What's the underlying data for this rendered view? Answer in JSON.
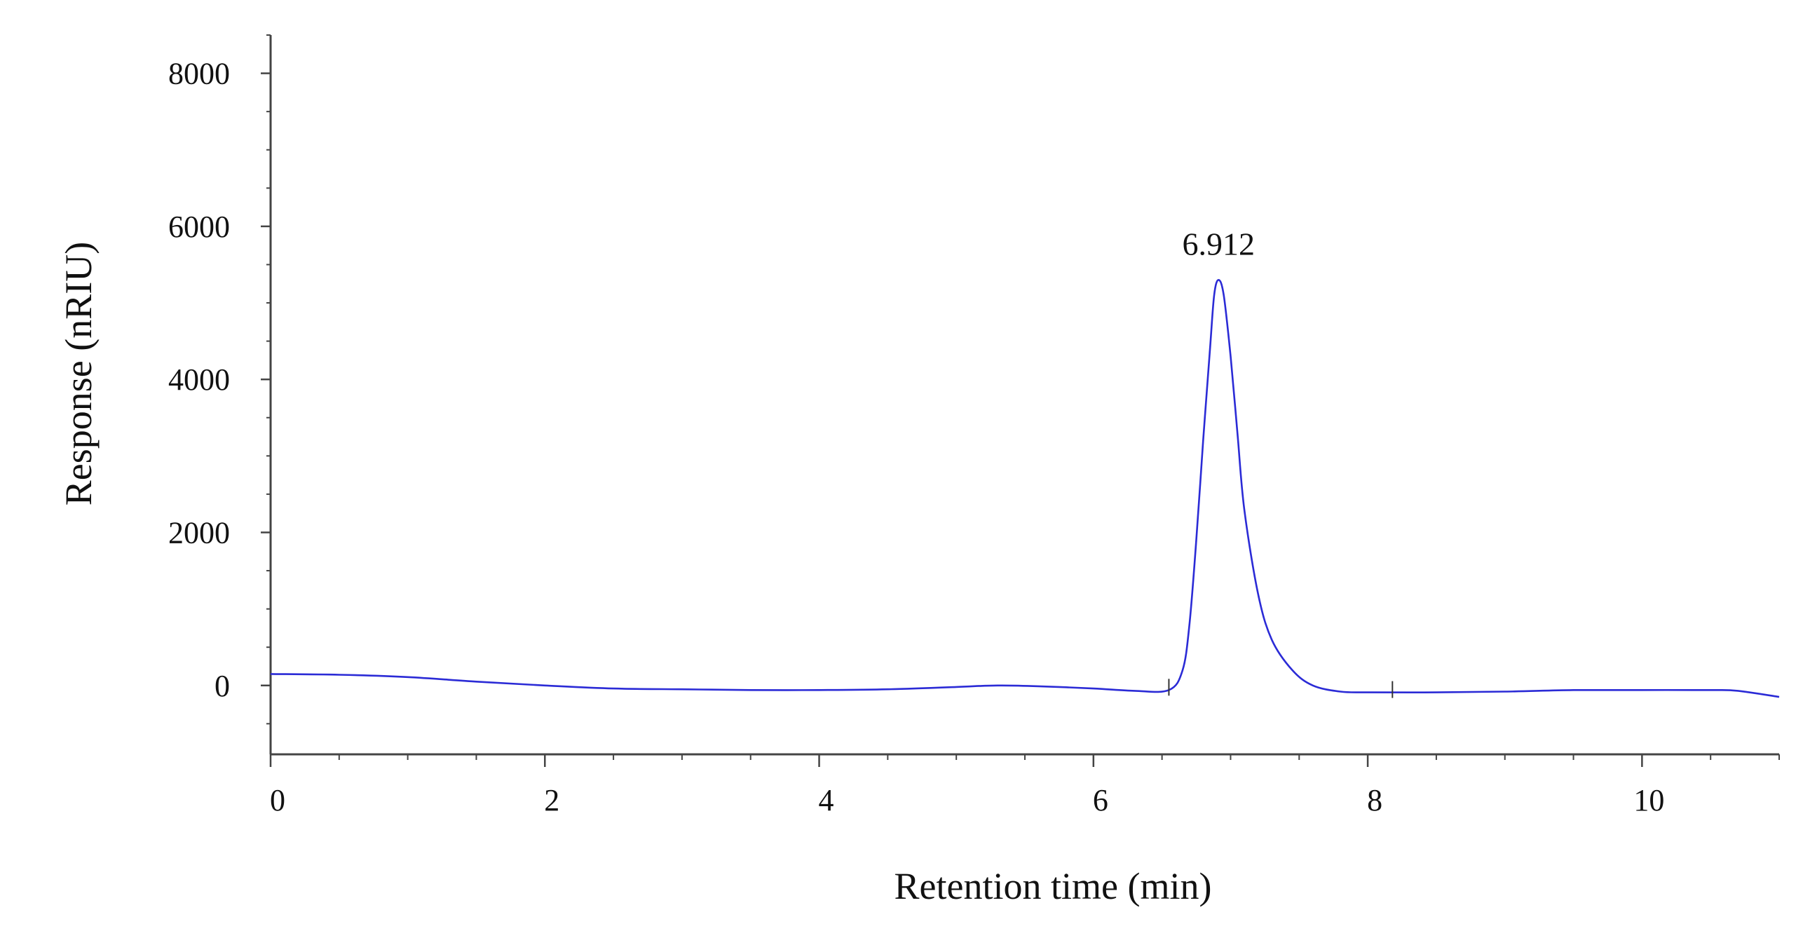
{
  "chart_data": {
    "type": "line",
    "title": "",
    "xlabel": "Retention time (min)",
    "ylabel": "Response (nRIU)",
    "xlim": [
      0,
      11
    ],
    "ylim": [
      -900,
      8500
    ],
    "x_ticks": [
      0,
      2,
      4,
      6,
      8,
      10
    ],
    "y_ticks": [
      0,
      2000,
      4000,
      6000,
      8000
    ],
    "grid": false,
    "line_color": "#2b2bd6",
    "series": [
      {
        "name": "",
        "x": [
          0,
          0.5,
          1.0,
          1.5,
          2.0,
          2.5,
          3.0,
          3.5,
          4.0,
          4.5,
          5.0,
          5.3,
          5.6,
          6.0,
          6.3,
          6.55,
          6.65,
          6.7,
          6.75,
          6.8,
          6.85,
          6.88,
          6.912,
          6.95,
          7.0,
          7.05,
          7.1,
          7.2,
          7.3,
          7.45,
          7.6,
          7.8,
          8.0,
          8.5,
          9.0,
          9.5,
          10.0,
          10.5,
          10.7,
          11.0
        ],
        "y": [
          150,
          140,
          110,
          50,
          0,
          -40,
          -50,
          -60,
          -60,
          -50,
          -20,
          0,
          -10,
          -40,
          -70,
          -60,
          200,
          800,
          1900,
          3200,
          4400,
          5100,
          5300,
          5100,
          4300,
          3300,
          2300,
          1200,
          600,
          200,
          0,
          -80,
          -90,
          -90,
          -80,
          -60,
          -60,
          -60,
          -70,
          -150
        ]
      }
    ],
    "annotations": [
      {
        "text": "6.912",
        "x": 6.912,
        "y": 5300
      }
    ],
    "integration_marks_x": [
      6.55,
      8.18
    ]
  }
}
